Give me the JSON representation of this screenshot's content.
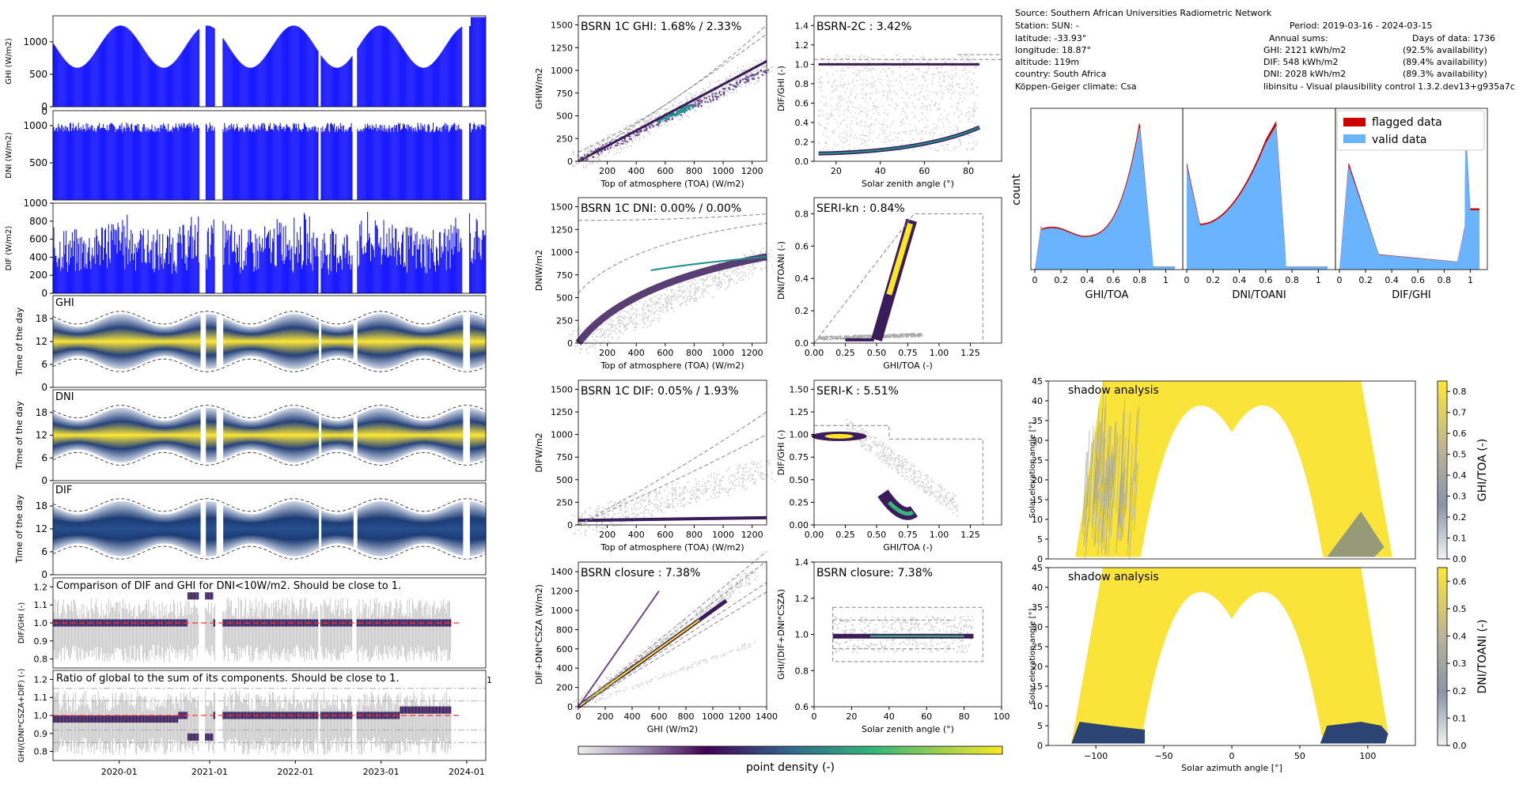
{
  "info": {
    "source": "Source: Southern African Universities Radiometric Network",
    "station": "Station: SUN: -",
    "latitude": "latitude: -33.93°",
    "longitude": "longitude: 18.87°",
    "altitude": "altitude: 119m",
    "country": "country: South Africa",
    "climate": "Köppen-Geiger climate: Csa",
    "period": "Period:  2019-03-16 - 2024-03-15",
    "annual": "Annual sums:",
    "days": "Days of data: 1736",
    "ghi_sum": "GHI:   2121 kWh/m2",
    "dif_sum": "DIF:   548 kWh/m2",
    "dni_sum": "DNI:   2028 kWh/m2",
    "ghi_av": "(92.5% availability)",
    "dif_av": "(89.4% availability)",
    "dni_av": "(89.3% availability)",
    "lib": "libinsitu - Visual plausibility control 1.3.2.dev13+g935a7c"
  },
  "colors": {
    "series": "#1a1aff",
    "flag": "#cc0000",
    "valid": "#6ab4ff",
    "ref": "#ff3333"
  },
  "left": {
    "xticks": [
      "2020-01",
      "2021-01",
      "2022-01",
      "2023-01",
      "2024-01"
    ],
    "xtick_pos": [
      0.153,
      0.362,
      0.56,
      0.758,
      0.956
    ],
    "ts": [
      {
        "ylabel": "GHI (W/m2)",
        "ticks": [
          "0",
          "500",
          "1000"
        ],
        "tickv": [
          0,
          500,
          1000
        ],
        "ymax": 1400
      },
      {
        "ylabel": "DNI (W/m2)",
        "ticks": [
          "500",
          "1000"
        ],
        "tickv": [
          500,
          1000
        ],
        "ymax": 1200,
        "extra": "0"
      },
      {
        "ylabel": "DIF (W/m2)",
        "ticks": [
          "0",
          "200",
          "400",
          "600",
          "800",
          "1000"
        ],
        "tickv": [
          0,
          200,
          400,
          600,
          800,
          1000
        ],
        "ymax": 1000
      }
    ],
    "heat": [
      {
        "label": "GHI",
        "ylabel": "Time of the day",
        "ticks": [
          "0",
          "6",
          "12",
          "18"
        ]
      },
      {
        "label": "DNI",
        "ylabel": "Time of the day",
        "ticks": [
          "0",
          "6",
          "12",
          "18"
        ]
      },
      {
        "label": "DIF",
        "ylabel": "Time of the day",
        "ticks": [
          "0",
          "6",
          "12",
          "18"
        ]
      }
    ],
    "ratio": [
      {
        "title": "Comparison of DIF and GHI for DNI<10W/m2. Should be close to 1.",
        "ylabel": "DIF/GHI (-)",
        "ticks": [
          "0.8",
          "0.9",
          "1.0",
          "1.1",
          "1.2"
        ],
        "ymin": 0.75,
        "ymax": 1.25
      },
      {
        "title": "Ratio of global to the sum of its components. Should be close to 1.",
        "ylabel": "GHI/(DNI*CSZA+DIF) (-)",
        "ticks": [
          "0.8",
          "0.9",
          "1.0",
          "1.1",
          "1.2"
        ],
        "ymin": 0.75,
        "ymax": 1.25,
        "extra": "1"
      }
    ]
  },
  "scatter": [
    {
      "title": "BSRN 1C GHI: 1.68% / 2.33%",
      "ylabel": "GHIW/m2",
      "xlabel": "Top of atmosphere (TOA) (W/m2)",
      "xticks": [
        "200",
        "400",
        "600",
        "800",
        "1000",
        "1200"
      ],
      "xv": [
        200,
        400,
        600,
        800,
        1000,
        1200
      ],
      "xmin": 0,
      "xmax": 1300,
      "yticks": [
        "0",
        "250",
        "500",
        "750",
        "1000",
        "1250",
        "1500"
      ],
      "yv": [
        0,
        250,
        500,
        750,
        1000,
        1250,
        1500
      ],
      "ymin": 0,
      "ymax": 1600
    },
    {
      "title": "BSRN-2C : 3.42%",
      "ylabel": "DIF/GHI (-)",
      "xlabel": "Solar zenith angle (°)",
      "xticks": [
        "20",
        "40",
        "60",
        "80"
      ],
      "xv": [
        20,
        40,
        60,
        80
      ],
      "xmin": 10,
      "xmax": 95,
      "yticks": [
        "0.0",
        "0.2",
        "0.4",
        "0.6",
        "0.8",
        "1.0",
        "1.2",
        "1.4"
      ],
      "yv": [
        0,
        0.2,
        0.4,
        0.6,
        0.8,
        1.0,
        1.2,
        1.4
      ],
      "ymin": 0,
      "ymax": 1.5
    },
    {
      "title": "BSRN 1C DNI: 0.00% / 0.00%",
      "ylabel": "DNIW/m2",
      "xlabel": "Top of atmosphere (TOA) (W/m2)",
      "xticks": [
        "200",
        "400",
        "600",
        "800",
        "1000",
        "1200"
      ],
      "xv": [
        200,
        400,
        600,
        800,
        1000,
        1200
      ],
      "xmin": 0,
      "xmax": 1300,
      "yticks": [
        "0",
        "250",
        "500",
        "750",
        "1000",
        "1250",
        "1500"
      ],
      "yv": [
        0,
        250,
        500,
        750,
        1000,
        1250,
        1500
      ],
      "ymin": 0,
      "ymax": 1600
    },
    {
      "title": "SERI-kn : 0.84%",
      "ylabel": "DNI/TOANI (-)",
      "xlabel": "GHI/TOA (-)",
      "xticks": [
        "0.00",
        "0.25",
        "0.50",
        "0.75",
        "1.00",
        "1.25"
      ],
      "xv": [
        0,
        0.25,
        0.5,
        0.75,
        1.0,
        1.25
      ],
      "xmin": 0,
      "xmax": 1.5,
      "yticks": [
        "0.0",
        "0.2",
        "0.4",
        "0.6",
        "0.8"
      ],
      "yv": [
        0,
        0.2,
        0.4,
        0.6,
        0.8
      ],
      "ymin": 0,
      "ymax": 0.9
    },
    {
      "title": "BSRN 1C DIF: 0.05% / 1.93%",
      "ylabel": "DIFW/m2",
      "xlabel": "Top of atmosphere (TOA) (W/m2)",
      "xticks": [
        "200",
        "400",
        "600",
        "800",
        "1000",
        "1200"
      ],
      "xv": [
        200,
        400,
        600,
        800,
        1000,
        1200
      ],
      "xmin": 0,
      "xmax": 1300,
      "yticks": [
        "0",
        "250",
        "500",
        "750",
        "1000",
        "1250",
        "1500"
      ],
      "yv": [
        0,
        250,
        500,
        750,
        1000,
        1250,
        1500
      ],
      "ymin": 0,
      "ymax": 1600
    },
    {
      "title": "SERI-K : 5.51%",
      "ylabel": "DIF/GHI (-)",
      "xlabel": "GHI/TOA (-)",
      "xticks": [
        "0.00",
        "0.25",
        "0.50",
        "0.75",
        "1.00",
        "1.25"
      ],
      "xv": [
        0,
        0.25,
        0.5,
        0.75,
        1.0,
        1.25
      ],
      "xmin": 0,
      "xmax": 1.5,
      "yticks": [
        "0.00",
        "0.25",
        "0.50",
        "0.75",
        "1.00",
        "1.25",
        "1.50"
      ],
      "yv": [
        0,
        0.25,
        0.5,
        0.75,
        1.0,
        1.25,
        1.5
      ],
      "ymin": 0,
      "ymax": 1.6
    },
    {
      "title": "BSRN closure : 7.38%",
      "ylabel": "DIF+DNI*CSZA (W/m2)",
      "xlabel": "GHI (W/m2)",
      "xticks": [
        "0",
        "200",
        "400",
        "600",
        "800",
        "1000",
        "1200",
        "1400"
      ],
      "xv": [
        0,
        200,
        400,
        600,
        800,
        1000,
        1200,
        1400
      ],
      "xmin": 0,
      "xmax": 1400,
      "yticks": [
        "0",
        "200",
        "400",
        "600",
        "800",
        "1000",
        "1200",
        "1400"
      ],
      "yv": [
        0,
        200,
        400,
        600,
        800,
        1000,
        1200,
        1400
      ],
      "ymin": 0,
      "ymax": 1500
    },
    {
      "title": "BSRN closure: 7.38%",
      "ylabel": "GHI/(DIF+DNI*CSZA)",
      "xlabel": "Solar zenith angle (°)",
      "xticks": [
        "0",
        "20",
        "40",
        "60",
        "80",
        "100"
      ],
      "xv": [
        0,
        20,
        40,
        60,
        80,
        100
      ],
      "xmin": 0,
      "xmax": 100,
      "yticks": [
        "0.6",
        "0.8",
        "1.0",
        "1.2",
        "1.4"
      ],
      "yv": [
        0.6,
        0.8,
        1.0,
        1.2,
        1.4
      ],
      "ymin": 0.6,
      "ymax": 1.4
    }
  ],
  "colorbar": {
    "label": "point density (-)"
  },
  "hist": {
    "ylabel": "count",
    "panels": [
      {
        "xlabel": "GHI/TOA",
        "ticks": [
          "0",
          "0.2",
          "0.4",
          "0.6",
          "0.8",
          "1"
        ],
        "tv": [
          0,
          0.2,
          0.4,
          0.6,
          0.8,
          1.0
        ]
      },
      {
        "xlabel": "DNI/TOANI",
        "ticks": [
          "0",
          "0.2",
          "0.4",
          "0.6",
          "0.8",
          "1"
        ],
        "tv": [
          0,
          0.2,
          0.4,
          0.6,
          0.8,
          1.0
        ]
      },
      {
        "xlabel": "DIF/GHI",
        "ticks": [
          "0",
          "0.2",
          "0.4",
          "0.6",
          "0.8",
          "1"
        ],
        "tv": [
          0,
          0.2,
          0.4,
          0.6,
          0.8,
          1.0
        ]
      }
    ],
    "legend": [
      "flagged data",
      "valid data"
    ]
  },
  "shadow": [
    {
      "title": "shadow analysis",
      "ylabel": "Solar elevation angle [°]",
      "yticks": [
        "0",
        "5",
        "10",
        "15",
        "20",
        "25",
        "30",
        "35",
        "40",
        "45"
      ],
      "cbar": "GHI/TOA (-)",
      "cticks": [
        "0.0",
        "0.1",
        "0.2",
        "0.3",
        "0.4",
        "0.5",
        "0.6",
        "0.7",
        "0.8"
      ],
      "cmax": 0.85
    },
    {
      "title": "shadow analysis",
      "ylabel": "Solar elevation angle [°]",
      "yticks": [
        "0",
        "5",
        "10",
        "15",
        "20",
        "25",
        "30",
        "35",
        "40",
        "45"
      ],
      "cbar": "DNI/TOANI (-)",
      "cticks": [
        "0.0",
        "0.1",
        "0.2",
        "0.3",
        "0.4",
        "0.5",
        "0.6"
      ],
      "cmax": 0.65,
      "xlabel": "Solar azimuth angle [°]",
      "xticks": [
        "−100",
        "−50",
        "0",
        "50",
        "100"
      ],
      "xv": [
        -100,
        -50,
        0,
        50,
        100
      ]
    }
  ],
  "chart_data": {
    "type": "scatter",
    "panels": [
      "BSRN 1C GHI: 1.68% / 2.33%",
      "BSRN-2C : 3.42%",
      "BSRN 1C DNI: 0.00% / 0.00%",
      "SERI-kn : 0.84%",
      "BSRN 1C DIF: 0.05% / 1.93%",
      "SERI-K : 5.51%",
      "BSRN closure : 7.38%",
      "BSRN closure: 7.38%"
    ],
    "period": [
      "2019-03-16",
      "2024-03-15"
    ]
  }
}
